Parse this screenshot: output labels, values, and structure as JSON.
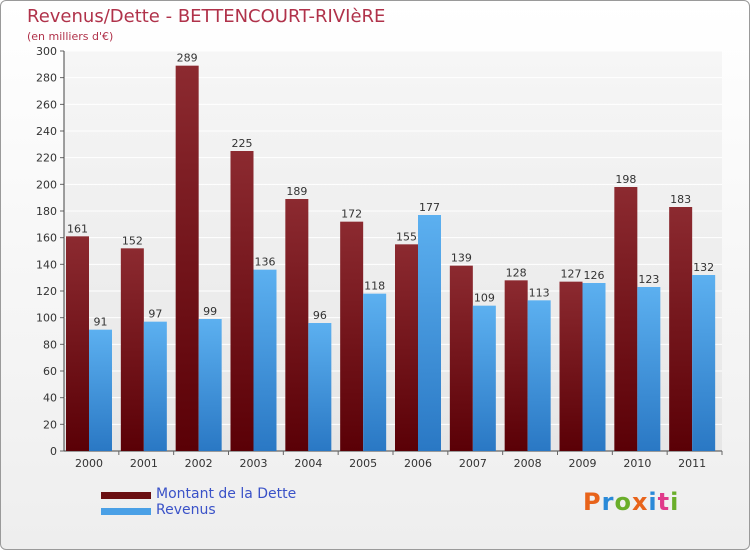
{
  "chart_data": {
    "type": "bar",
    "title": "Revenus/Dette - BETTENCOURT-RIVIèRE",
    "subtitle": "(en milliers d'€)",
    "categories": [
      "2000",
      "2001",
      "2002",
      "2003",
      "2004",
      "2005",
      "2006",
      "2007",
      "2008",
      "2009",
      "2010",
      "2011"
    ],
    "series": [
      {
        "name": "Montant de la Dette",
        "color": "#7a1a1e",
        "values": [
          161,
          152,
          289,
          225,
          189,
          172,
          155,
          139,
          128,
          127,
          198,
          183
        ]
      },
      {
        "name": "Revenus",
        "color": "#4aa0e6",
        "values": [
          91,
          97,
          99,
          136,
          96,
          118,
          177,
          109,
          113,
          126,
          123,
          132
        ]
      }
    ],
    "ylim": [
      0,
      300
    ],
    "yticks": [
      0,
      20,
      40,
      60,
      80,
      100,
      120,
      140,
      160,
      180,
      200,
      220,
      240,
      260,
      280,
      300
    ],
    "grid": true,
    "legend": "bottom-left"
  },
  "logo": {
    "letters": [
      "P",
      "r",
      "o",
      "x",
      "i",
      "t",
      "i"
    ],
    "colors": [
      "#e8631a",
      "#2a8ad8",
      "#6aae2a",
      "#e8631a",
      "#2a8ad8",
      "#e03a8a",
      "#6aae2a"
    ]
  }
}
